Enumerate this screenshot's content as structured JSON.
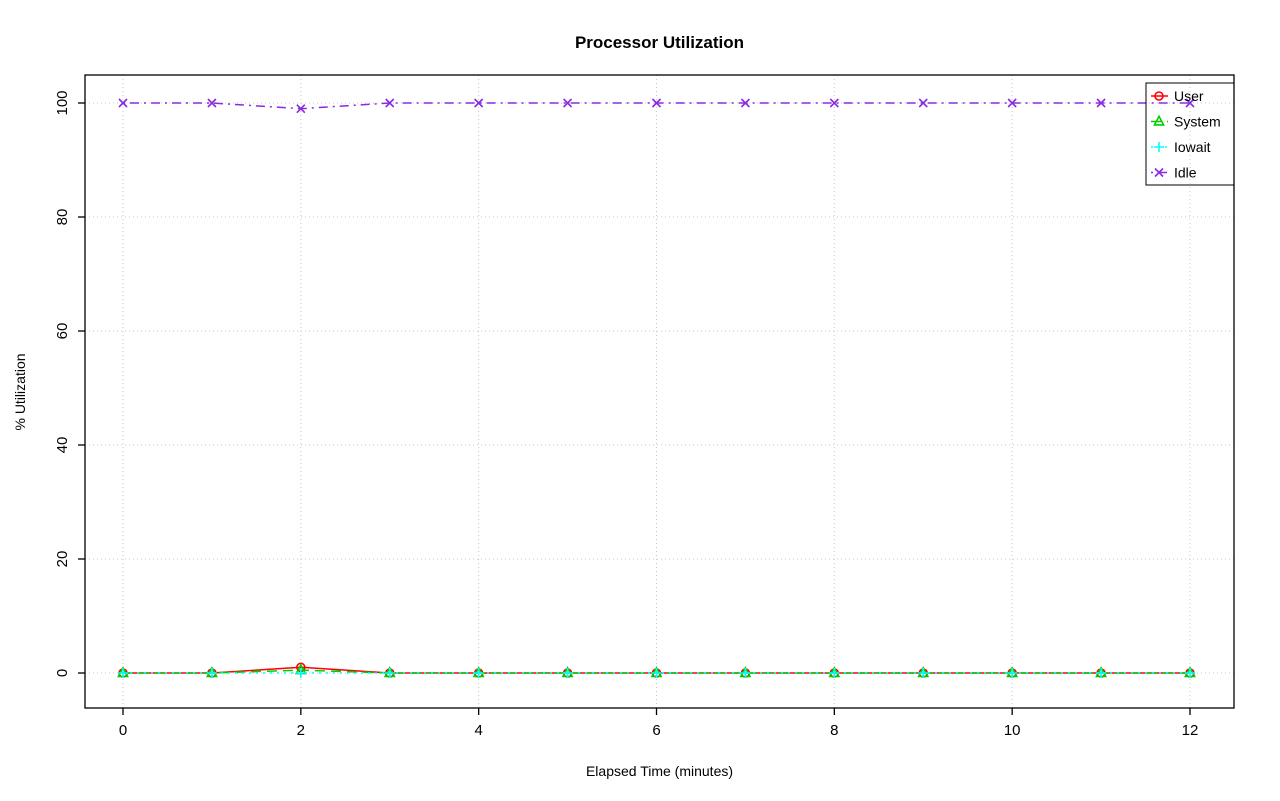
{
  "chart_data": {
    "type": "line",
    "title": "Processor Utilization",
    "xlabel": "Elapsed Time (minutes)",
    "ylabel": "% Utilization",
    "x": [
      0,
      1,
      2,
      3,
      4,
      5,
      6,
      7,
      8,
      9,
      10,
      11,
      12
    ],
    "xlim": [
      0,
      12
    ],
    "ylim": [
      0,
      100
    ],
    "x_ticks": [
      0,
      2,
      4,
      6,
      8,
      10,
      12
    ],
    "y_ticks": [
      0,
      20,
      40,
      60,
      80,
      100
    ],
    "grid": true,
    "grid_color": "#c8c8c8",
    "legend_position": "top-right",
    "series": [
      {
        "name": "User",
        "color": "#ff0000",
        "marker": "circle",
        "line_style": "solid",
        "values": [
          0,
          0,
          1,
          0,
          0,
          0,
          0,
          0,
          0,
          0,
          0,
          0,
          0
        ]
      },
      {
        "name": "System",
        "color": "#00cd00",
        "marker": "triangle",
        "line_style": "dashed",
        "values": [
          0,
          0,
          0.5,
          0,
          0,
          0,
          0,
          0,
          0,
          0,
          0,
          0,
          0
        ]
      },
      {
        "name": "Iowait",
        "color": "#00ffff",
        "marker": "plus",
        "line_style": "dotted",
        "values": [
          0,
          0,
          0,
          0,
          0,
          0,
          0,
          0,
          0,
          0,
          0,
          0,
          0
        ]
      },
      {
        "name": "Idle",
        "color": "#8a2be2",
        "marker": "x",
        "line_style": "dotdash",
        "values": [
          100,
          100,
          99,
          100,
          100,
          100,
          100,
          100,
          100,
          100,
          100,
          100,
          100
        ]
      }
    ]
  }
}
